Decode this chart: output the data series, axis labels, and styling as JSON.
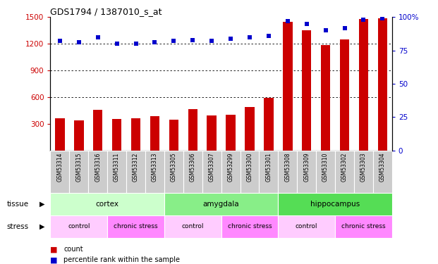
{
  "title": "GDS1794 / 1387010_s_at",
  "samples": [
    "GSM53314",
    "GSM53315",
    "GSM53316",
    "GSM53311",
    "GSM53312",
    "GSM53313",
    "GSM53305",
    "GSM53306",
    "GSM53307",
    "GSM53299",
    "GSM53300",
    "GSM53301",
    "GSM53308",
    "GSM53309",
    "GSM53310",
    "GSM53302",
    "GSM53303",
    "GSM53304"
  ],
  "counts": [
    360,
    340,
    460,
    355,
    365,
    390,
    345,
    465,
    395,
    400,
    490,
    590,
    1450,
    1355,
    1190,
    1250,
    1480,
    1490
  ],
  "percentiles": [
    82,
    81,
    85,
    80,
    80,
    81,
    82,
    83,
    82,
    84,
    85,
    86,
    97,
    95,
    90,
    92,
    98,
    99
  ],
  "ylim_left": [
    0,
    1500
  ],
  "ylim_right": [
    0,
    100
  ],
  "yticks_left": [
    300,
    600,
    900,
    1200,
    1500
  ],
  "yticks_right": [
    0,
    25,
    50,
    75,
    100
  ],
  "bar_color": "#cc0000",
  "dot_color": "#0000cc",
  "tissue_groups": [
    {
      "label": "cortex",
      "start": 0,
      "end": 6,
      "color": "#ccffcc"
    },
    {
      "label": "amygdala",
      "start": 6,
      "end": 12,
      "color": "#88ee88"
    },
    {
      "label": "hippocampus",
      "start": 12,
      "end": 18,
      "color": "#55dd55"
    }
  ],
  "stress_groups": [
    {
      "label": "control",
      "start": 0,
      "end": 3,
      "color": "#ffccff"
    },
    {
      "label": "chronic stress",
      "start": 3,
      "end": 6,
      "color": "#ff88ff"
    },
    {
      "label": "control",
      "start": 6,
      "end": 9,
      "color": "#ffccff"
    },
    {
      "label": "chronic stress",
      "start": 9,
      "end": 12,
      "color": "#ff88ff"
    },
    {
      "label": "control",
      "start": 12,
      "end": 15,
      "color": "#ffccff"
    },
    {
      "label": "chronic stress",
      "start": 15,
      "end": 18,
      "color": "#ff88ff"
    }
  ],
  "tissue_label": "tissue",
  "stress_label": "stress",
  "legend_count": "count",
  "legend_pct": "percentile rank within the sample",
  "bg_color": "#ffffff",
  "grid_color": "#000000",
  "sample_bg": "#cccccc",
  "tick_label_color_left": "#cc0000",
  "tick_label_color_right": "#0000cc"
}
